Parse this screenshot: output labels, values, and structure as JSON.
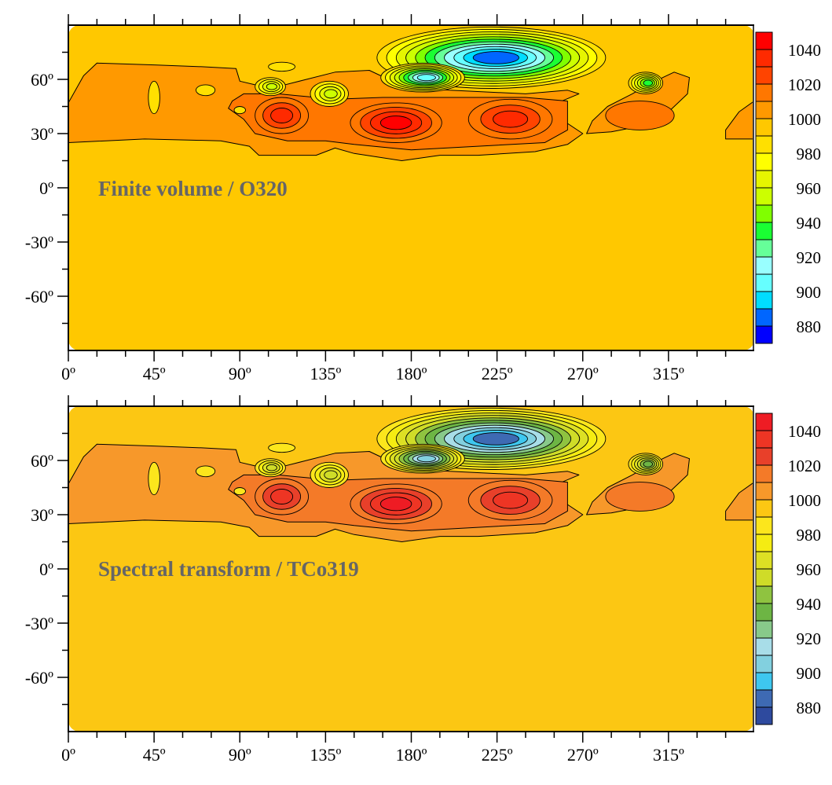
{
  "chart_data": [
    {
      "type": "heatmap",
      "subtype": "filled-contour",
      "title": "Finite volume / O320",
      "xlabel": "",
      "ylabel": "",
      "xlim": [
        0,
        360
      ],
      "ylim": [
        -90,
        90
      ],
      "xticks": [
        "0º",
        "45º",
        "90º",
        "135º",
        "180º",
        "225º",
        "270º",
        "315º"
      ],
      "yticks": [
        "60º",
        "30º",
        "0º",
        "-30º",
        "-60º"
      ],
      "colorbar": {
        "levels_min": 870,
        "levels_step": 10,
        "tick_labels": [
          "1040",
          "1020",
          "1000",
          "980",
          "960",
          "940",
          "920",
          "900",
          "880"
        ],
        "colors": [
          "#0000ff",
          "#0066ff",
          "#00ddff",
          "#66ffff",
          "#99ffff",
          "#66ff99",
          "#1aff33",
          "#80ff00",
          "#ccff00",
          "#e6f500",
          "#ffff00",
          "#ffe000",
          "#ffc800",
          "#ff9900",
          "#ff7700",
          "#ff4400",
          "#ff2a00",
          "#ff0000"
        ]
      },
      "background_value": 995
    },
    {
      "type": "heatmap",
      "subtype": "filled-contour",
      "title": "Spectral transform / TCo319",
      "xlabel": "",
      "ylabel": "",
      "xlim": [
        0,
        360
      ],
      "ylim": [
        -90,
        90
      ],
      "xticks": [
        "0º",
        "45º",
        "90º",
        "135º",
        "180º",
        "225º",
        "270º",
        "315º"
      ],
      "yticks": [
        "60º",
        "30º",
        "0º",
        "-30º",
        "-60º"
      ],
      "colorbar": {
        "levels_min": 870,
        "levels_step": 10,
        "tick_labels": [
          "1040",
          "1020",
          "1000",
          "980",
          "960",
          "940",
          "920",
          "900",
          "880"
        ],
        "colors": [
          "#2e4a9e",
          "#3e6ab3",
          "#3ec7ef",
          "#82d0df",
          "#a8dde8",
          "#88c98a",
          "#6db544",
          "#8fc340",
          "#cfdc28",
          "#dde024",
          "#f5ec12",
          "#fce61c",
          "#fcc713",
          "#f7982a",
          "#f47a28",
          "#e8402a",
          "#ee3524",
          "#ee1c24"
        ]
      },
      "background_value": 995
    }
  ],
  "regions": [
    {
      "value": 1005,
      "points": [
        [
          0,
          47
        ],
        [
          8,
          62
        ],
        [
          15,
          69
        ],
        [
          45,
          68
        ],
        [
          70,
          67
        ],
        [
          88,
          66
        ],
        [
          90,
          59
        ],
        [
          98,
          57
        ],
        [
          110,
          56
        ],
        [
          125,
          60
        ],
        [
          140,
          64
        ],
        [
          158,
          65
        ],
        [
          168,
          60
        ],
        [
          175,
          56
        ],
        [
          200,
          54
        ],
        [
          240,
          52
        ],
        [
          262,
          54
        ],
        [
          268,
          52
        ],
        [
          250,
          44
        ],
        [
          270,
          30
        ],
        [
          262,
          24
        ],
        [
          245,
          20
        ],
        [
          215,
          18
        ],
        [
          195,
          18
        ],
        [
          175,
          15
        ],
        [
          150,
          19
        ],
        [
          140,
          22
        ],
        [
          130,
          18
        ],
        [
          100,
          18
        ],
        [
          95,
          23
        ],
        [
          80,
          26
        ],
        [
          40,
          27
        ],
        [
          0,
          25
        ]
      ]
    },
    {
      "value": 1015,
      "points": [
        [
          86,
          48
        ],
        [
          92,
          52
        ],
        [
          110,
          52
        ],
        [
          140,
          49
        ],
        [
          165,
          50
        ],
        [
          200,
          50
        ],
        [
          240,
          50
        ],
        [
          262,
          48
        ],
        [
          262,
          32
        ],
        [
          250,
          25
        ],
        [
          215,
          23
        ],
        [
          180,
          21
        ],
        [
          150,
          24
        ],
        [
          135,
          26
        ],
        [
          115,
          26
        ],
        [
          98,
          30
        ],
        [
          92,
          38
        ],
        [
          84,
          44
        ]
      ]
    },
    {
      "value": 1005,
      "points": [
        [
          272,
          30
        ],
        [
          285,
          31
        ],
        [
          300,
          34
        ],
        [
          315,
          42
        ],
        [
          325,
          52
        ],
        [
          326,
          61
        ],
        [
          318,
          64
        ],
        [
          306,
          58
        ],
        [
          296,
          52
        ],
        [
          283,
          45
        ],
        [
          275,
          37
        ]
      ]
    },
    {
      "value": 1005,
      "points": [
        [
          345,
          27
        ],
        [
          360,
          27
        ],
        [
          360,
          48
        ],
        [
          352,
          42
        ],
        [
          345,
          32
        ]
      ]
    }
  ],
  "features": [
    {
      "kind": "high",
      "lon": 112,
      "lat": 40,
      "rx": 14,
      "ry": 10,
      "center": 1035
    },
    {
      "kind": "high",
      "lon": 172,
      "lat": 36,
      "rx": 24,
      "ry": 11,
      "center": 1045
    },
    {
      "kind": "high",
      "lon": 232,
      "lat": 38,
      "rx": 22,
      "ry": 11,
      "center": 1035
    },
    {
      "kind": "high",
      "lon": 300,
      "lat": 40,
      "rx": 18,
      "ry": 8,
      "center": 1018
    },
    {
      "kind": "low",
      "lon": 222,
      "lat": 72,
      "rx": 60,
      "ry": 17,
      "center": 883
    },
    {
      "kind": "low",
      "lon": 186,
      "lat": 61,
      "rx": 22,
      "ry": 8,
      "center": 905
    },
    {
      "kind": "low",
      "lon": 106,
      "lat": 56,
      "rx": 8,
      "ry": 5,
      "center": 955
    },
    {
      "kind": "low",
      "lon": 137,
      "lat": 52,
      "rx": 10,
      "ry": 7,
      "center": 950
    },
    {
      "kind": "low",
      "lon": 303,
      "lat": 58,
      "rx": 9,
      "ry": 6,
      "center": 930
    },
    {
      "kind": "low",
      "lon": 112,
      "lat": 67,
      "rx": 7,
      "ry": 2.5,
      "center": 985
    },
    {
      "kind": "low",
      "lon": 72,
      "lat": 54,
      "rx": 5,
      "ry": 3,
      "center": 985
    },
    {
      "kind": "low",
      "lon": 45,
      "lat": 50,
      "rx": 3,
      "ry": 9,
      "center": 985
    },
    {
      "kind": "low",
      "lon": 90,
      "lat": 43,
      "rx": 3,
      "ry": 2,
      "center": 985
    }
  ]
}
